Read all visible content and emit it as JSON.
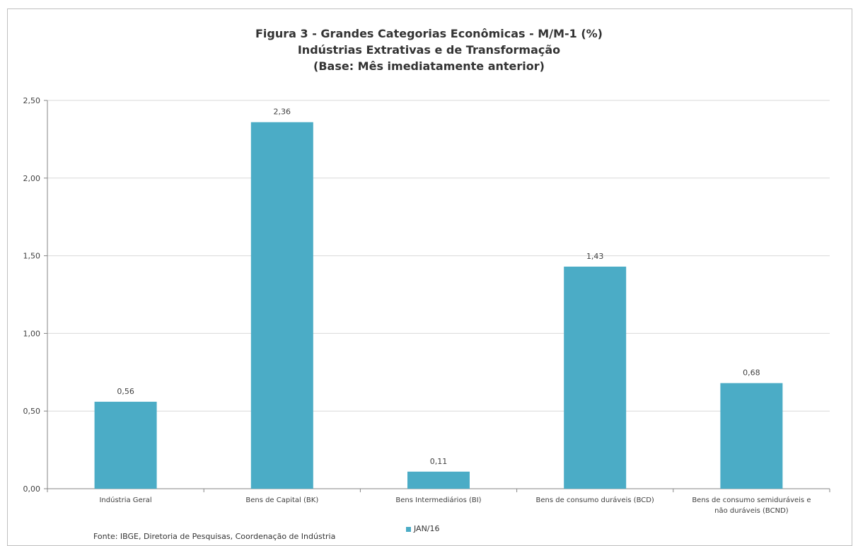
{
  "chart_data": {
    "type": "bar",
    "title": "Figura 3 - Grandes Categorias Econômicas - M/M-1 (%)",
    "subtitle": "Indústrias Extrativas e de Transformação",
    "subtitle2": "(Base: Mês imediatamente anterior)",
    "categories": [
      "Indústria Geral",
      "Bens de Capital (BK)",
      "Bens Intermediários (BI)",
      "Bens de consumo duráveis (BCD)",
      "Bens de consumo semiduráveis e não duráveis (BCND)"
    ],
    "category_lines": [
      [
        "Indústria Geral"
      ],
      [
        "Bens de Capital (BK)"
      ],
      [
        "Bens Intermediários (BI)"
      ],
      [
        "Bens de consumo duráveis (BCD)"
      ],
      [
        "Bens de consumo semiduráveis e",
        "não duráveis (BCND)"
      ]
    ],
    "series": [
      {
        "name": "JAN/16",
        "values": [
          0.56,
          2.36,
          0.11,
          1.43,
          0.68
        ]
      }
    ],
    "data_labels": [
      "0,56",
      "2,36",
      "0,11",
      "1,43",
      "0,68"
    ],
    "ylim": [
      0,
      2.5
    ],
    "yticks": [
      0,
      0.5,
      1.0,
      1.5,
      2.0,
      2.5
    ],
    "ytick_labels": [
      "0,00",
      "0,50",
      "1,00",
      "1,50",
      "2,00",
      "2,50"
    ],
    "grid": true,
    "legend_position": "bottom",
    "bar_color": "#4bacc6",
    "source": "Fonte: IBGE, Diretoria de Pesquisas, Coordenação de Indústria"
  }
}
